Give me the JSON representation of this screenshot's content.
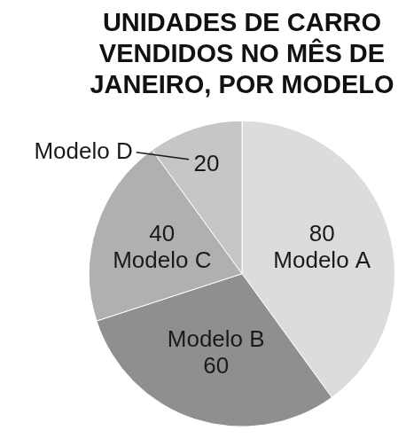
{
  "chart_data": {
    "type": "pie",
    "title": [
      "UNIDADES DE CARRO",
      "VENDIDOS NO MÊS DE",
      "JANEIRO, POR MODELO"
    ],
    "categories": [
      "Modelo A",
      "Modelo B",
      "Modelo C",
      "Modelo D"
    ],
    "values": [
      80,
      60,
      40,
      20
    ],
    "colors": [
      "#dcdcdc",
      "#8f8f8f",
      "#b0b0b0",
      "#c6c6c6"
    ],
    "data_labels": true
  }
}
